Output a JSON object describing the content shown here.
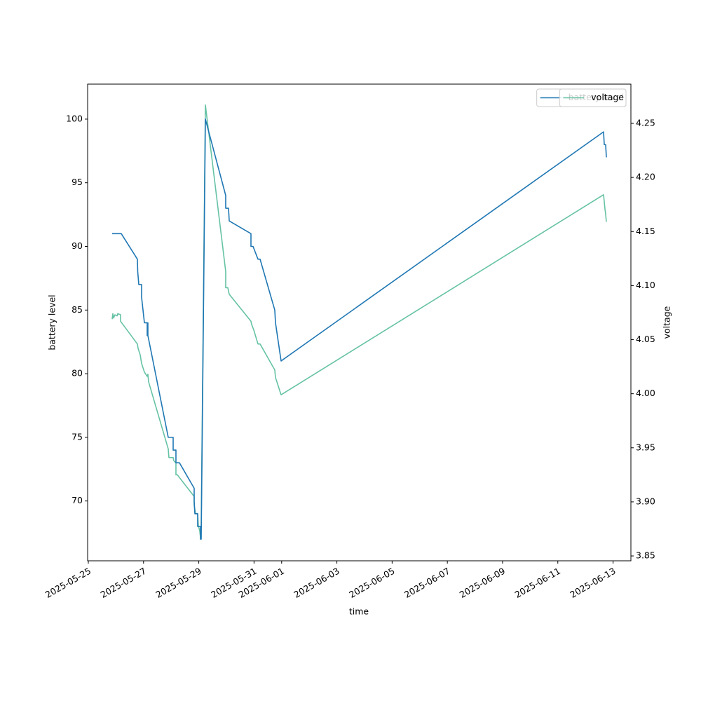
{
  "chart_data": {
    "type": "line",
    "xlabel": "time",
    "ylabel": "battery level",
    "y2label": "voltage",
    "legend": "upper right",
    "grid": false,
    "xlim": [
      "2025-05-24T23:24",
      "2025-06-13T15:30"
    ],
    "xticks": [
      "2025-05-25",
      "2025-05-27",
      "2025-05-29",
      "2025-05-31",
      "2025-06-01",
      "2025-06-03",
      "2025-06-05",
      "2025-06-07",
      "2025-06-09",
      "2025-06-11",
      "2025-06-13"
    ],
    "ylim": [
      65.3,
      102.75
    ],
    "yticks": [
      70,
      75,
      80,
      85,
      90,
      95,
      100
    ],
    "y2lim": [
      3.8455,
      4.2863
    ],
    "y2ticks": [
      3.85,
      {
        "value": 3.9,
        "label": "3.90"
      },
      3.95,
      {
        "value": 4.0,
        "label": "4.00"
      },
      4.05,
      {
        "value": 4.1,
        "label": "4.10"
      },
      4.15,
      {
        "value": 4.2,
        "label": "4.20"
      },
      4.25
    ],
    "series": [
      {
        "name": "battery level",
        "color": "#1f77b4",
        "x": [
          "2025-05-25T20:43",
          "2025-05-26T04:38",
          "2025-05-26T18:38",
          "2025-05-26T18:57",
          "2025-05-26T19:52",
          "2025-05-26T22:18",
          "2025-05-26T22:18",
          "2025-05-26T23:31",
          "2025-05-27T00:44",
          "2025-05-27T03:10",
          "2025-05-27T03:10",
          "2025-05-27T03:47",
          "2025-05-27T03:47",
          "2025-05-27T21:27",
          "2025-05-28T01:43",
          "2025-05-28T01:43",
          "2025-05-28T04:09",
          "2025-05-28T04:09",
          "2025-05-28T07:12",
          "2025-05-28T19:59",
          "2025-05-28T19:59",
          "2025-05-28T20:36",
          "2025-05-28T23:02",
          "2025-05-28T23:02",
          "2025-05-29T01:28",
          "2025-05-29T01:28",
          "2025-05-29T02:05",
          "2025-05-29T05:44",
          "2025-05-29T23:24",
          "2025-05-29T23:24",
          "2025-05-30T01:50",
          "2025-05-30T02:27",
          "2025-05-30T21:20",
          "2025-05-30T21:20",
          "2025-05-30T23:09",
          "2025-05-31T03:25",
          "2025-05-31T05:15",
          "2025-05-31T18:02",
          "2025-05-31T18:39",
          "2025-05-31T23:31",
          "2025-06-12T15:44",
          "2025-06-12T16:21",
          "2025-06-12T17:34",
          "2025-06-12T18:10"
        ],
        "values": [
          91,
          91,
          89,
          88,
          87,
          87,
          86,
          85,
          84,
          84,
          83,
          84,
          83,
          75,
          75,
          74,
          74,
          73,
          73,
          71,
          70,
          69,
          69,
          68,
          68,
          67,
          67,
          100,
          94,
          93,
          93,
          92,
          91,
          90,
          90,
          89,
          89,
          85,
          84,
          81,
          99,
          98,
          98,
          97
        ]
      },
      {
        "name": "voltage",
        "color": "#66c2a5",
        "axis": "y2",
        "x": [
          "2025-05-25T20:43",
          "2025-05-25T21:19",
          "2025-05-25T21:56",
          "2025-05-25T23:09",
          "2025-05-26T00:59",
          "2025-05-26T01:35",
          "2025-05-26T04:01",
          "2025-05-26T04:01",
          "2025-05-26T18:38",
          "2025-05-26T19:15",
          "2025-05-26T21:05",
          "2025-05-26T22:18",
          "2025-05-27T00:44",
          "2025-05-27T03:10",
          "2025-05-27T03:47",
          "2025-05-27T04:23",
          "2025-05-27T21:27",
          "2025-05-27T22:03",
          "2025-05-28T01:43",
          "2025-05-28T02:19",
          "2025-05-28T04:09",
          "2025-05-28T04:09",
          "2025-05-28T05:22",
          "2025-05-28T19:59",
          "2025-05-28T19:59",
          "2025-05-28T21:12",
          "2025-05-28T23:02",
          "2025-05-28T23:38",
          "2025-05-29T00:51",
          "2025-05-29T01:28",
          "2025-05-29T02:05",
          "2025-05-29T05:44",
          "2025-05-29T23:24",
          "2025-05-29T23:24",
          "2025-05-30T01:13",
          "2025-05-30T02:27",
          "2025-05-30T21:20",
          "2025-05-30T21:56",
          "2025-05-30T23:46",
          "2025-05-31T03:25",
          "2025-05-31T05:15",
          "2025-05-31T18:02",
          "2025-05-31T18:39",
          "2025-05-31T23:31",
          "2025-06-12T15:44",
          "2025-06-12T16:57",
          "2025-06-12T17:34",
          "2025-06-12T18:10"
        ],
        "values": [
          4.069,
          4.074,
          4.07,
          4.073,
          4.072,
          4.074,
          4.073,
          4.067,
          4.046,
          4.042,
          4.036,
          4.028,
          4.02,
          4.016,
          4.018,
          4.011,
          3.949,
          3.941,
          3.941,
          3.938,
          3.936,
          3.925,
          3.925,
          3.905,
          3.897,
          3.889,
          3.889,
          3.878,
          3.873,
          3.867,
          3.878,
          4.267,
          4.113,
          4.098,
          4.098,
          4.092,
          4.067,
          4.064,
          4.059,
          4.046,
          4.046,
          4.022,
          4.015,
          3.999,
          4.184,
          4.171,
          4.166,
          4.159
        ]
      }
    ]
  }
}
